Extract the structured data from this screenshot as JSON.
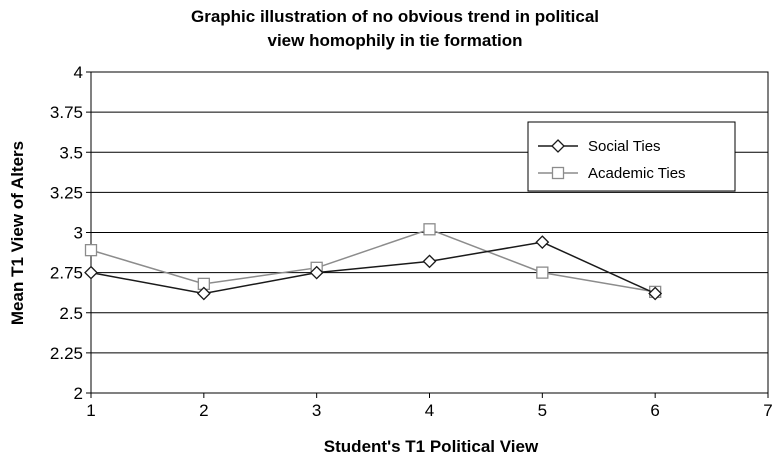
{
  "chart_data": {
    "type": "line",
    "title_lines": [
      "Graphic illustration of no obvious trend in political",
      "view homophily in tie formation"
    ],
    "xlabel": "Student's T1 Political View",
    "ylabel": "Mean T1 View of Alters",
    "xlim": [
      1,
      7
    ],
    "ylim": [
      2,
      4
    ],
    "x_ticks": [
      "1",
      "2",
      "3",
      "4",
      "5",
      "6",
      "7"
    ],
    "y_ticks": [
      "2",
      "2.25",
      "2.5",
      "2.75",
      "3",
      "3.25",
      "3.5",
      "3.75",
      "4"
    ],
    "horizontal_grid": true,
    "legend_position": "top-right",
    "series": [
      {
        "name": "Social Ties",
        "marker": "diamond",
        "color": "#1a1a1a",
        "x": [
          1,
          2,
          3,
          4,
          5,
          6
        ],
        "y": [
          2.75,
          2.62,
          2.75,
          2.82,
          2.94,
          2.62
        ]
      },
      {
        "name": "Academic Ties",
        "marker": "square",
        "color": "#8c8c8c",
        "x": [
          1,
          2,
          3,
          4,
          5,
          6
        ],
        "y": [
          2.89,
          2.68,
          2.78,
          3.02,
          2.75,
          2.63
        ]
      }
    ]
  }
}
